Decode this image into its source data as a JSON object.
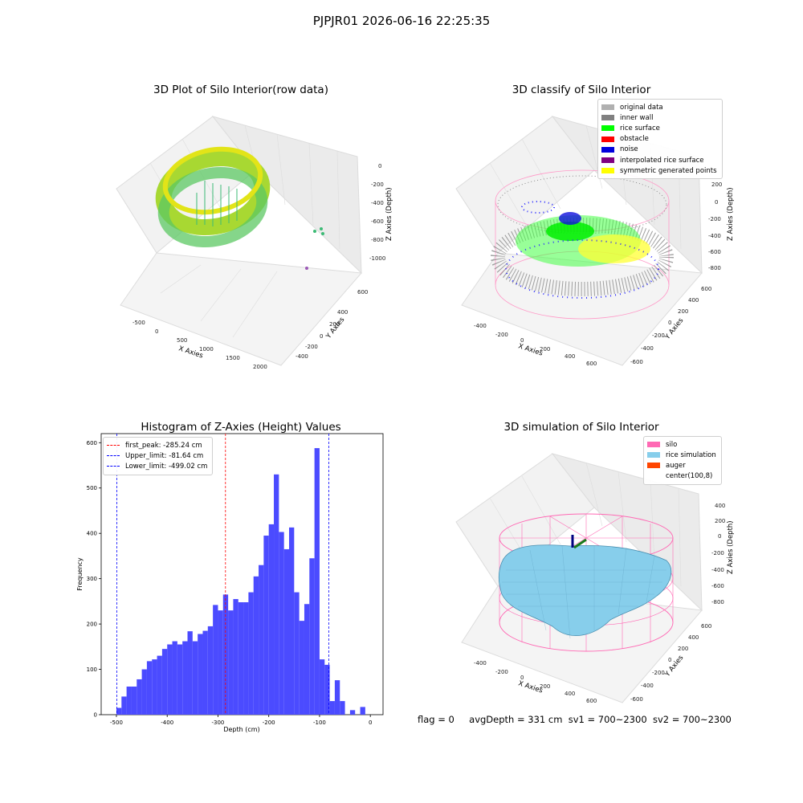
{
  "suptitle": "PJPJR01 2026-06-16 22:25:35",
  "panels": {
    "raw": {
      "title": "3D Plot of Silo Interior(row data)",
      "xlabel": "X Axies",
      "ylabel": "Y Axies",
      "zlabel": "Z Axies (Depth)",
      "xticks": [
        "-500",
        "0",
        "500",
        "1000",
        "1500",
        "2000"
      ],
      "yticks": [
        "600",
        "400",
        "200",
        "0",
        "-200",
        "-400",
        "-600"
      ],
      "zticks": [
        "0",
        "-200",
        "-400",
        "-600",
        "-800",
        "-1000"
      ]
    },
    "classify": {
      "title": "3D classify of Silo Interior",
      "xlabel": "X Axies",
      "ylabel": "Y Axies",
      "zlabel": "Z Axies (Depth)",
      "xticks": [
        "-400",
        "-200",
        "0",
        "200",
        "400",
        "600"
      ],
      "yticks": [
        "600",
        "400",
        "200",
        "0",
        "-200",
        "-400",
        "-600"
      ],
      "zticks": [
        "200",
        "0",
        "-200",
        "-400",
        "-600",
        "-800"
      ],
      "legend": [
        {
          "label": "original data",
          "color": "#b0b0b0"
        },
        {
          "label": "inner wall",
          "color": "#808080"
        },
        {
          "label": "rice surface",
          "color": "#00ff00"
        },
        {
          "label": "obstacle",
          "color": "#ff0000"
        },
        {
          "label": "noise",
          "color": "#0000dd"
        },
        {
          "label": "interpolated rice surface",
          "color": "#800080"
        },
        {
          "label": "symmetric generated points",
          "color": "#ffff00"
        }
      ]
    },
    "simulation": {
      "title": "3D simulation of Silo Interior",
      "xlabel": "X Axies",
      "ylabel": "Y Axies",
      "zlabel": "Z Axies (Depth)",
      "xticks": [
        "-400",
        "-200",
        "0",
        "200",
        "400",
        "600"
      ],
      "yticks": [
        "600",
        "400",
        "200",
        "0",
        "-200",
        "-400",
        "-600"
      ],
      "zticks": [
        "400",
        "200",
        "0",
        "-200",
        "-400",
        "-600",
        "-800"
      ],
      "legend": [
        {
          "label": "silo",
          "color": "#ff69b4"
        },
        {
          "label": "rice simulation",
          "color": "#87ceeb"
        },
        {
          "label": "auger",
          "color": "#ff4500"
        },
        {
          "label": "center(100,8)",
          "color": ""
        }
      ]
    }
  },
  "footer": {
    "flag": "flag = 0",
    "avg": "avgDepth = 331 cm",
    "sv1": "sv1 = 700~2300",
    "sv2": "sv2 = 700~2300"
  },
  "chart_data": {
    "type": "bar",
    "title": "Histogram of Z-Axies (Height) Values",
    "xlabel": "Depth (cm)",
    "ylabel": "Frequency",
    "xlim": [
      -530,
      25
    ],
    "ylim": [
      0,
      620
    ],
    "xticks": [
      -500,
      -400,
      -300,
      -200,
      -100,
      0
    ],
    "yticks": [
      0,
      100,
      200,
      300,
      400,
      500,
      600
    ],
    "bin_width": 10,
    "bin_starts": [
      -510,
      -500,
      -490,
      -480,
      -470,
      -460,
      -450,
      -440,
      -430,
      -420,
      -410,
      -400,
      -390,
      -380,
      -370,
      -360,
      -350,
      -340,
      -330,
      -320,
      -310,
      -300,
      -290,
      -280,
      -270,
      -260,
      -250,
      -240,
      -230,
      -220,
      -210,
      -200,
      -190,
      -180,
      -170,
      -160,
      -150,
      -140,
      -130,
      -120,
      -110,
      -100,
      -90,
      -80,
      -70,
      -60,
      -50,
      -40,
      -30,
      -20,
      -10,
      0
    ],
    "values": [
      0,
      15,
      40,
      62,
      62,
      78,
      100,
      118,
      122,
      130,
      145,
      155,
      162,
      155,
      162,
      184,
      162,
      178,
      185,
      195,
      242,
      230,
      265,
      230,
      255,
      248,
      248,
      270,
      305,
      330,
      395,
      420,
      530,
      403,
      365,
      413,
      270,
      207,
      244,
      345,
      588,
      122,
      110,
      30,
      76,
      30,
      0,
      10,
      0,
      17,
      0,
      0
    ],
    "bar_color": "#4b4bff",
    "vlines": [
      {
        "label": "first_peak: -285.24 cm",
        "x": -285.24,
        "color": "#ff0000"
      },
      {
        "label": "Upper_limit: -81.64 cm",
        "x": -81.64,
        "color": "#0000ff"
      },
      {
        "label": "Lower_limit: -499.02 cm",
        "x": -499.02,
        "color": "#0000ff"
      }
    ],
    "legend_position": "top-left"
  }
}
